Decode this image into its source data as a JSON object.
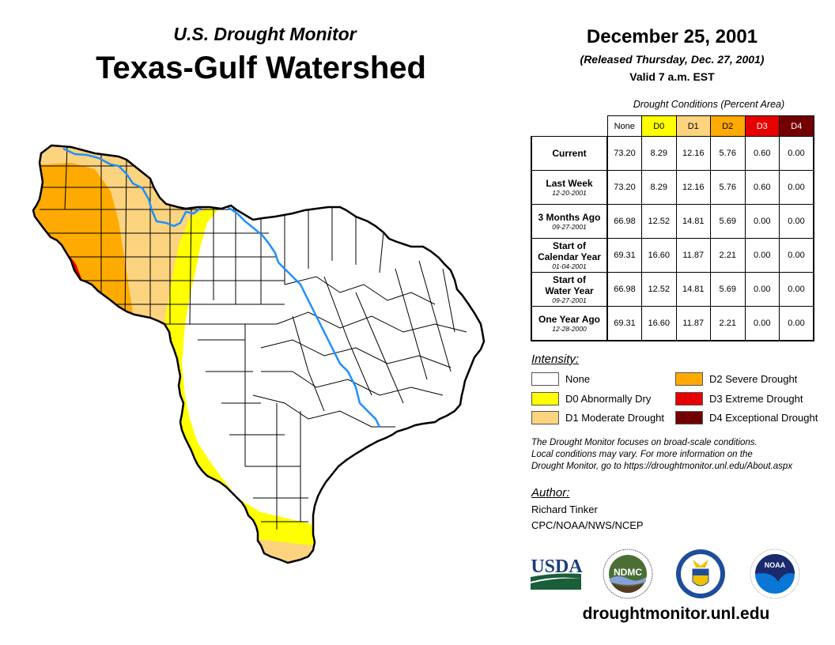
{
  "header": {
    "subtitle": "U.S. Drought Monitor",
    "title": "Texas-Gulf Watershed",
    "date": "December 25, 2001",
    "released": "(Released Thursday, Dec. 27, 2001)",
    "valid": "Valid 7 a.m. EST"
  },
  "table": {
    "caption": "Drought Conditions (Percent Area)",
    "columns": [
      "None",
      "D0",
      "D1",
      "D2",
      "D3",
      "D4"
    ],
    "rows": [
      {
        "label1": "Current",
        "label2": "",
        "date": "",
        "values": [
          "73.20",
          "8.29",
          "12.16",
          "5.76",
          "0.60",
          "0.00"
        ]
      },
      {
        "label1": "Last Week",
        "label2": "",
        "date": "12-20-2001",
        "values": [
          "73.20",
          "8.29",
          "12.16",
          "5.76",
          "0.60",
          "0.00"
        ]
      },
      {
        "label1": "3 Months Ago",
        "label2": "",
        "date": "09-27-2001",
        "values": [
          "66.98",
          "12.52",
          "14.81",
          "5.69",
          "0.00",
          "0.00"
        ]
      },
      {
        "label1": "Start of",
        "label2": "Calendar Year",
        "date": "01-04-2001",
        "values": [
          "69.31",
          "16.60",
          "11.87",
          "2.21",
          "0.00",
          "0.00"
        ]
      },
      {
        "label1": "Start of",
        "label2": "Water Year",
        "date": "09-27-2001",
        "values": [
          "66.98",
          "12.52",
          "14.81",
          "5.69",
          "0.00",
          "0.00"
        ]
      },
      {
        "label1": "One Year Ago",
        "label2": "",
        "date": "12-28-2000",
        "values": [
          "69.31",
          "16.60",
          "11.87",
          "2.21",
          "0.00",
          "0.00"
        ]
      }
    ]
  },
  "legend": {
    "title": "Intensity:",
    "items": [
      {
        "label": "None",
        "color": "#ffffff"
      },
      {
        "label": "D0 Abnormally Dry",
        "color": "#ffff00"
      },
      {
        "label": "D1 Moderate Drought",
        "color": "#fcd37f"
      },
      {
        "label": "D2 Severe Drought",
        "color": "#ffaa00"
      },
      {
        "label": "D3 Extreme Drought",
        "color": "#e60000"
      },
      {
        "label": "D4 Exceptional Drought",
        "color": "#730000"
      }
    ]
  },
  "header_colors": {
    "None": "#ffffff",
    "D0": "#ffff00",
    "D1": "#fcd37f",
    "D2": "#ffaa00",
    "D3": "#e60000",
    "D4": "#730000"
  },
  "header_text_colors": {
    "None": "#000000",
    "D0": "#000000",
    "D1": "#000000",
    "D2": "#000000",
    "D3": "#ffffff",
    "D4": "#ffffff"
  },
  "disclaimer": {
    "line1": "The Drought Monitor focuses on broad-scale conditions.",
    "line2": "Local conditions may vary. For more information on the",
    "line3": "Drought Monitor, go to https://droughtmonitor.unl.edu/About.aspx"
  },
  "author": {
    "title": "Author:",
    "name": "Richard Tinker",
    "org": "CPC/NOAA/NWS/NCEP"
  },
  "logos": {
    "usda": "USDA",
    "ndmc": "NDMC",
    "noaa": "NOAA"
  },
  "map": {
    "river_color": "#1e90ff",
    "region": "Texas-Gulf Watershed"
  },
  "footer": {
    "website": "droughtmonitor.unl.edu"
  }
}
